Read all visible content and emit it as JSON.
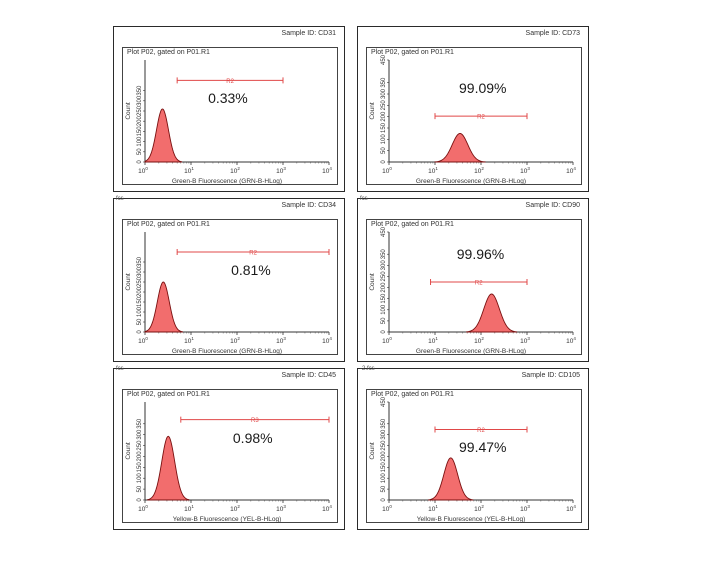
{
  "chart_data": [
    {
      "type": "area",
      "sample_id": "Sample ID: CD31",
      "fcs_tag": "",
      "plot_title": "Plot P02, gated on P01.R1",
      "xlabel": "Green-B Fluorescence (GRN-B-HLog)",
      "ylabel": "Count",
      "x_scale": "log",
      "xlim": [
        1,
        10000
      ],
      "ylim": [
        0,
        500
      ],
      "x_ticks": [
        {
          "base": "10",
          "exp": "0"
        },
        {
          "base": "10",
          "exp": "1"
        },
        {
          "base": "10",
          "exp": "2"
        },
        {
          "base": "10",
          "exp": "3"
        },
        {
          "base": "10",
          "exp": "4"
        }
      ],
      "y_ticks": [
        "0",
        "50",
        "100",
        "150",
        "200",
        "250",
        "300",
        "350"
      ],
      "gate": {
        "label": "R2",
        "start": 5,
        "end": 1000,
        "level": 0.8
      },
      "percent": "0.33%",
      "peak": {
        "center": 2.4,
        "height": 0.52,
        "spread": 0.13
      },
      "color": "#f26d6d"
    },
    {
      "type": "area",
      "sample_id": "Sample ID: CD73",
      "fcs_tag": "",
      "plot_title": "Plot P02, gated on P01.R1",
      "xlabel": "Green-B Fluorescence (GRN-B-HLog)",
      "ylabel": "Count",
      "x_scale": "log",
      "xlim": [
        1,
        10000
      ],
      "ylim": [
        0,
        450
      ],
      "x_ticks": [
        {
          "base": "10",
          "exp": "0"
        },
        {
          "base": "10",
          "exp": "1"
        },
        {
          "base": "10",
          "exp": "2"
        },
        {
          "base": "10",
          "exp": "3"
        },
        {
          "base": "10",
          "exp": "4"
        }
      ],
      "y_ticks": [
        "0",
        "50",
        "100",
        "150",
        "200",
        "250",
        "300",
        "350",
        "450"
      ],
      "gate": {
        "label": "R2",
        "start": 10,
        "end": 1000,
        "level": 0.45
      },
      "percent": "99.09%",
      "peak": {
        "center": 35,
        "height": 0.28,
        "spread": 0.17
      },
      "color": "#f26d6d"
    },
    {
      "type": "area",
      "sample_id": "Sample ID: CD34",
      "fcs_tag": "fcs",
      "plot_title": "Plot P02, gated on P01.R1",
      "xlabel": "Green-B Fluorescence (GRN-B-HLog)",
      "ylabel": "Count",
      "x_scale": "log",
      "xlim": [
        1,
        10000
      ],
      "ylim": [
        0,
        500
      ],
      "x_ticks": [
        {
          "base": "10",
          "exp": "0"
        },
        {
          "base": "10",
          "exp": "1"
        },
        {
          "base": "10",
          "exp": "2"
        },
        {
          "base": "10",
          "exp": "3"
        },
        {
          "base": "10",
          "exp": "4"
        }
      ],
      "y_ticks": [
        "0",
        "50",
        "100",
        "150",
        "200",
        "250",
        "300",
        "350"
      ],
      "gate": {
        "label": "R2",
        "start": 5,
        "end": 10000,
        "level": 0.8
      },
      "percent": "0.81%",
      "peak": {
        "center": 2.5,
        "height": 0.5,
        "spread": 0.13
      },
      "color": "#f26d6d"
    },
    {
      "type": "area",
      "sample_id": "Sample ID: CD90",
      "fcs_tag": "fcs",
      "plot_title": "Plot P02, gated on P01.R1",
      "xlabel": "Green-B Fluorescence (GRN-B-HLog)",
      "ylabel": "Count",
      "x_scale": "log",
      "xlim": [
        1,
        10000
      ],
      "ylim": [
        0,
        450
      ],
      "x_ticks": [
        {
          "base": "10",
          "exp": "0"
        },
        {
          "base": "10",
          "exp": "1"
        },
        {
          "base": "10",
          "exp": "2"
        },
        {
          "base": "10",
          "exp": "3"
        },
        {
          "base": "10",
          "exp": "4"
        }
      ],
      "y_ticks": [
        "0",
        "50",
        "100",
        "150",
        "200",
        "250",
        "300",
        "350",
        "450"
      ],
      "gate": {
        "label": "R2",
        "start": 8,
        "end": 1000,
        "level": 0.5
      },
      "percent": "99.96%",
      "peak": {
        "center": 170,
        "height": 0.38,
        "spread": 0.17
      },
      "color": "#f26d6d"
    },
    {
      "type": "area",
      "sample_id": "Sample ID: CD45",
      "fcs_tag": "fcs",
      "plot_title": "Plot P02, gated on P01.R1",
      "xlabel": "Yellow-B Fluorescence (YEL-B-HLog)",
      "ylabel": "Count",
      "x_scale": "log",
      "xlim": [
        1,
        10000
      ],
      "ylim": [
        0,
        450
      ],
      "x_ticks": [
        {
          "base": "10",
          "exp": "0"
        },
        {
          "base": "10",
          "exp": "1"
        },
        {
          "base": "10",
          "exp": "2"
        },
        {
          "base": "10",
          "exp": "3"
        },
        {
          "base": "10",
          "exp": "4"
        }
      ],
      "y_ticks": [
        "0",
        "50",
        "100",
        "150",
        "200",
        "250",
        "300",
        "350"
      ],
      "gate": {
        "label": "R3",
        "start": 6,
        "end": 10000,
        "level": 0.82
      },
      "percent": "0.98%",
      "peak": {
        "center": 3.2,
        "height": 0.65,
        "spread": 0.14
      },
      "color": "#f26d6d"
    },
    {
      "type": "area",
      "sample_id": "Sample ID: CD105",
      "fcs_tag": "-2.fcs",
      "plot_title": "Plot P02, gated on P01.R1",
      "xlabel": "Yellow-B Fluorescence (YEL-B-HLog)",
      "ylabel": "Count",
      "x_scale": "log",
      "xlim": [
        1,
        10000
      ],
      "ylim": [
        0,
        450
      ],
      "x_ticks": [
        {
          "base": "10",
          "exp": "0"
        },
        {
          "base": "10",
          "exp": "1"
        },
        {
          "base": "10",
          "exp": "2"
        },
        {
          "base": "10",
          "exp": "3"
        },
        {
          "base": "10",
          "exp": "4"
        }
      ],
      "y_ticks": [
        "0",
        "50",
        "100",
        "150",
        "200",
        "250",
        "300",
        "350",
        "450"
      ],
      "gate": {
        "label": "R2",
        "start": 10,
        "end": 1000,
        "level": 0.72
      },
      "percent": "99.47%",
      "peak": {
        "center": 22,
        "height": 0.43,
        "spread": 0.15
      },
      "color": "#f26d6d"
    }
  ]
}
